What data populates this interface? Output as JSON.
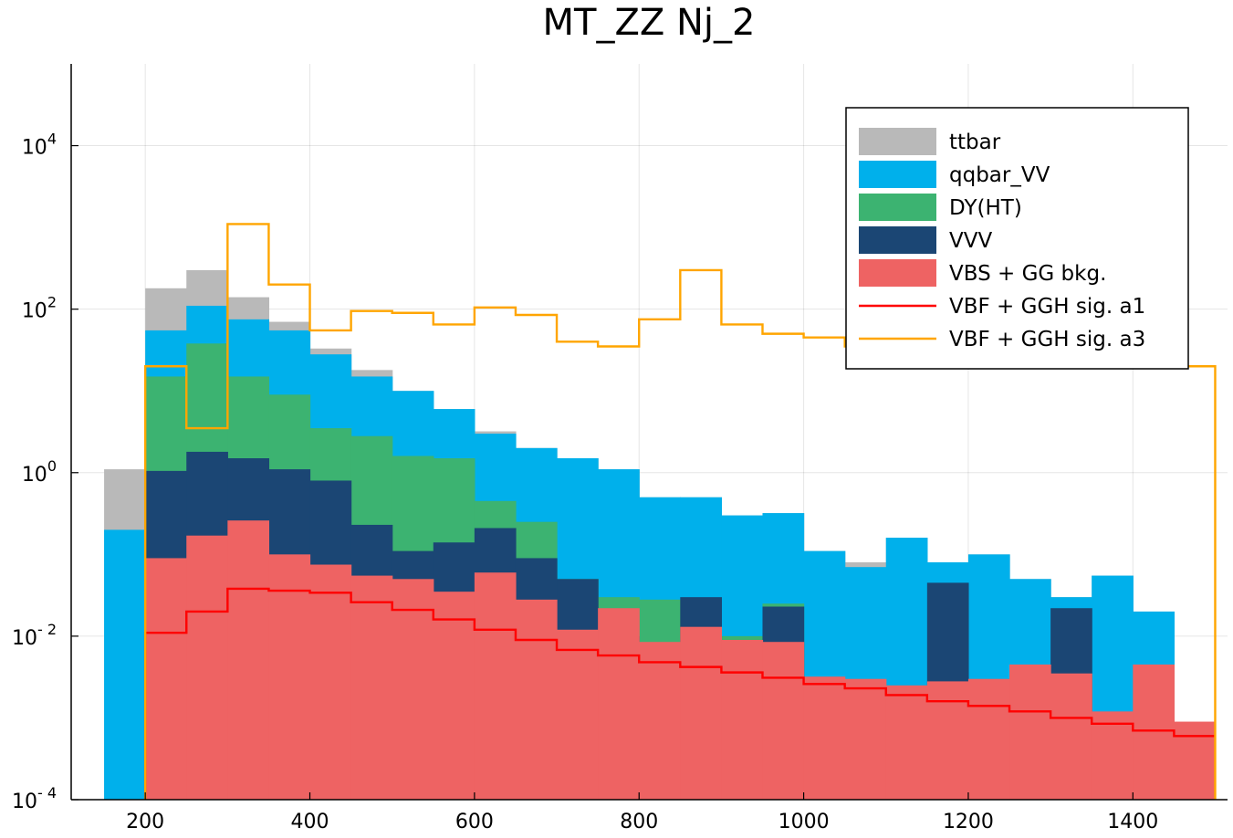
{
  "chart_data": {
    "type": "bar",
    "title": "MT_ZZ Nj_2",
    "xlabel": "",
    "ylabel": "",
    "x_ticks": [
      200,
      400,
      600,
      800,
      1000,
      1200,
      1400
    ],
    "y_ticks": [
      {
        "value": 0.0001,
        "base": "10",
        "exp": "- 4"
      },
      {
        "value": 0.01,
        "base": "10",
        "exp": "- 2"
      },
      {
        "value": 1,
        "base": "10",
        "exp": "0"
      },
      {
        "value": 100,
        "base": "10",
        "exp": "2"
      },
      {
        "value": 10000,
        "base": "10",
        "exp": "4"
      }
    ],
    "xlim": [
      110,
      1515
    ],
    "ylim": [
      0.0001,
      100000
    ],
    "log_y": true,
    "grid": true,
    "legend_position": "top-right",
    "bin_edges": [
      150,
      200,
      250,
      300,
      350,
      400,
      450,
      500,
      550,
      600,
      650,
      700,
      750,
      800,
      850,
      900,
      950,
      1000,
      1050,
      1100,
      1150,
      1200,
      1250,
      1300,
      1350,
      1400,
      1450,
      1500
    ],
    "stacked_series": [
      {
        "name": "ttbar",
        "color": "#b9b9b9",
        "totals": [
          1.1,
          180,
          300,
          140,
          70,
          33,
          18,
          10,
          6,
          3.2,
          2,
          1.5,
          1.1,
          0.5,
          0.5,
          0.3,
          0.32,
          0.11,
          0.08,
          0.16,
          0.08,
          0.1,
          0.05,
          0.03,
          0.055,
          0.02,
          null
        ]
      },
      {
        "name": "qqbar_VV",
        "color": "#00b0eb",
        "totals": [
          0.2,
          55,
          110,
          75,
          55,
          28,
          15,
          10,
          6,
          3,
          2,
          1.5,
          1.1,
          0.5,
          0.5,
          0.3,
          0.32,
          0.11,
          0.07,
          0.16,
          0.08,
          0.1,
          0.05,
          0.03,
          0.055,
          0.02,
          null
        ]
      },
      {
        "name": "DY(HT)",
        "color": "#3cb371",
        "totals": [
          null,
          15,
          38,
          15,
          9,
          3.5,
          2.8,
          1.6,
          1.5,
          0.45,
          0.25,
          0.05,
          0.03,
          0.028,
          0.028,
          0.01,
          0.025,
          null,
          null,
          null,
          null,
          null,
          null,
          null,
          null,
          null,
          null
        ]
      },
      {
        "name": "VVV",
        "color": "#1b4674",
        "totals": [
          null,
          1.05,
          1.8,
          1.5,
          1.1,
          0.8,
          0.23,
          0.11,
          0.14,
          0.21,
          0.09,
          0.05,
          0.01,
          null,
          0.03,
          0.009,
          0.023,
          null,
          null,
          null,
          0.045,
          null,
          null,
          0.022,
          null,
          null,
          null
        ]
      },
      {
        "name": "VBS + GG bkg.",
        "color": "#ee6363",
        "totals": [
          null,
          0.09,
          0.17,
          0.26,
          0.1,
          0.075,
          0.055,
          0.05,
          0.035,
          0.06,
          0.028,
          0.012,
          0.022,
          0.0085,
          0.013,
          0.009,
          0.0085,
          0.0032,
          0.003,
          0.0025,
          0.0028,
          0.003,
          0.0045,
          0.0035,
          0.0012,
          0.0045,
          0.0009
        ]
      }
    ],
    "line_series": [
      {
        "name": "VBF + GGH sig. a1",
        "color": "#ff0000",
        "values": [
          null,
          0.011,
          0.02,
          0.038,
          0.036,
          0.034,
          0.026,
          0.021,
          0.016,
          0.012,
          0.009,
          0.0068,
          0.0058,
          0.0048,
          0.0042,
          0.0036,
          0.0031,
          0.0026,
          0.0023,
          0.0019,
          0.0016,
          0.0014,
          0.0012,
          0.001,
          0.00085,
          0.0007,
          0.0006
        ]
      },
      {
        "name": "VBF + GGH sig. a3",
        "color": "#ffa500",
        "values": [
          null,
          20,
          3.5,
          1100,
          200,
          55,
          95,
          90,
          65,
          105,
          85,
          40,
          35,
          75,
          300,
          65,
          50,
          45,
          35,
          28,
          22,
          28,
          40,
          35,
          30,
          25,
          20
        ]
      }
    ]
  }
}
